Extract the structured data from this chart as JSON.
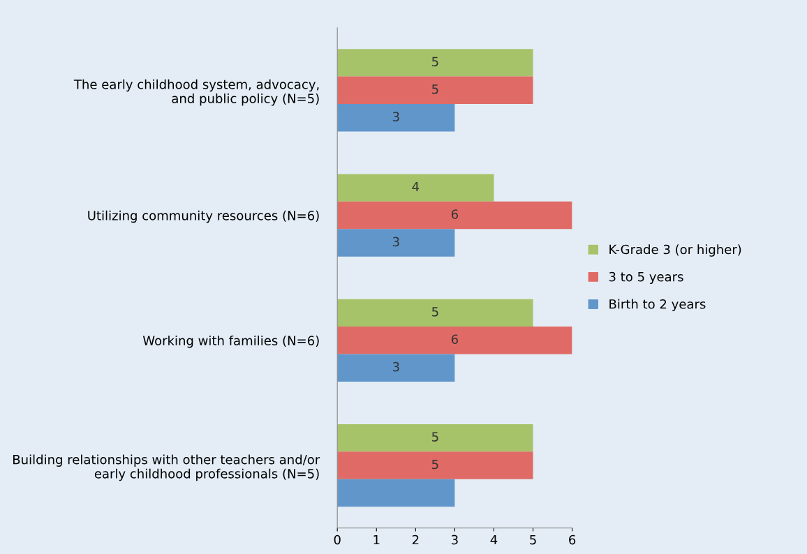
{
  "chart_data": {
    "type": "bar",
    "orientation": "horizontal",
    "categories": [
      "The early childhood system, advocacy,\nand public policy (N=5)",
      "Utilizing community resources (N=6)",
      "Working with families (N=6)",
      "Building relationships with other teachers and/or\nearly childhood professionals (N=5)"
    ],
    "series": [
      {
        "name": "K-Grade 3 (or higher)",
        "color": "#a6c36a",
        "values": [
          5,
          4,
          5,
          5
        ],
        "value_labels": [
          "5",
          "4",
          "5",
          "5"
        ]
      },
      {
        "name": "3 to 5 years",
        "color": "#e06b66",
        "values": [
          5,
          6,
          6,
          5
        ],
        "value_labels": [
          "5",
          "6",
          "6",
          "5"
        ]
      },
      {
        "name": "Birth to 2 years",
        "color": "#6196cb",
        "values": [
          3,
          3,
          3,
          3
        ],
        "value_labels": [
          "3",
          "3",
          "3",
          null
        ]
      }
    ],
    "xlim": [
      0,
      6
    ],
    "xticks": [
      0,
      1,
      2,
      3,
      4,
      5,
      6
    ],
    "grid": false,
    "legend": "right"
  }
}
